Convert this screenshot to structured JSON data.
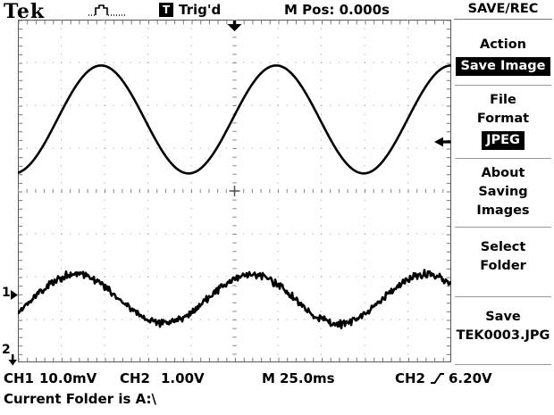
{
  "topbar": {
    "logo": "Tek",
    "trigger_badge": "T",
    "trigger_status": "Trig'd",
    "horizontal_pos": "M Pos: 0.000s"
  },
  "menu": {
    "title": "SAVE/REC",
    "sections": [
      {
        "lines": [
          "Action"
        ],
        "value": "Save Image"
      },
      {
        "lines": [
          "File",
          "Format"
        ],
        "value": "JPEG"
      },
      {
        "lines": [
          "About",
          "Saving",
          "Images"
        ]
      },
      {
        "lines": [
          "Select",
          "Folder"
        ]
      },
      {
        "lines": [
          "Save",
          "TEK0003.JPG"
        ]
      }
    ]
  },
  "markers": {
    "ch1": "1",
    "ch2": "2"
  },
  "readouts": {
    "ch1_label": "CH1",
    "ch1_scale": "10.0mV",
    "ch2_label": "CH2",
    "ch2_scale": "1.00V",
    "time_label": "M",
    "time_scale": "25.0ms",
    "trigger_source": "CH2",
    "trigger_level": "6.20V"
  },
  "status_line": "Current Folder is A:\\",
  "colors": {
    "trace": "#000000",
    "grid_dots": "#999999",
    "grid_ticks": "#777777",
    "highlight_bg": "#000000",
    "highlight_fg": "#ffffff"
  },
  "chart_data": {
    "type": "line",
    "title": "Oscilloscope traces",
    "x_divisions": 10,
    "y_divisions": 8,
    "timebase_per_div": "25.0ms",
    "horizontal_position": "0.000s",
    "trigger": {
      "source": "CH2",
      "slope": "rising",
      "level": "6.20V"
    },
    "series": [
      {
        "name": "CH2",
        "volts_per_div": "1.00V",
        "shape": "sine-clean",
        "period_divisions": 4.04,
        "amplitude_divisions": 1.26,
        "center_divisions_from_top": 2.33,
        "first_peak_at_division": 1.92,
        "noise_divisions": 0,
        "stroke_px": 2.6
      },
      {
        "name": "CH1",
        "volts_per_div": "10.0mV",
        "shape": "sine-noisy",
        "period_divisions": 4.04,
        "amplitude_divisions": 0.58,
        "center_divisions_from_top": 6.52,
        "first_peak_at_division": 1.34,
        "noise_divisions": 0.075,
        "stroke_px": 2.6
      }
    ]
  }
}
